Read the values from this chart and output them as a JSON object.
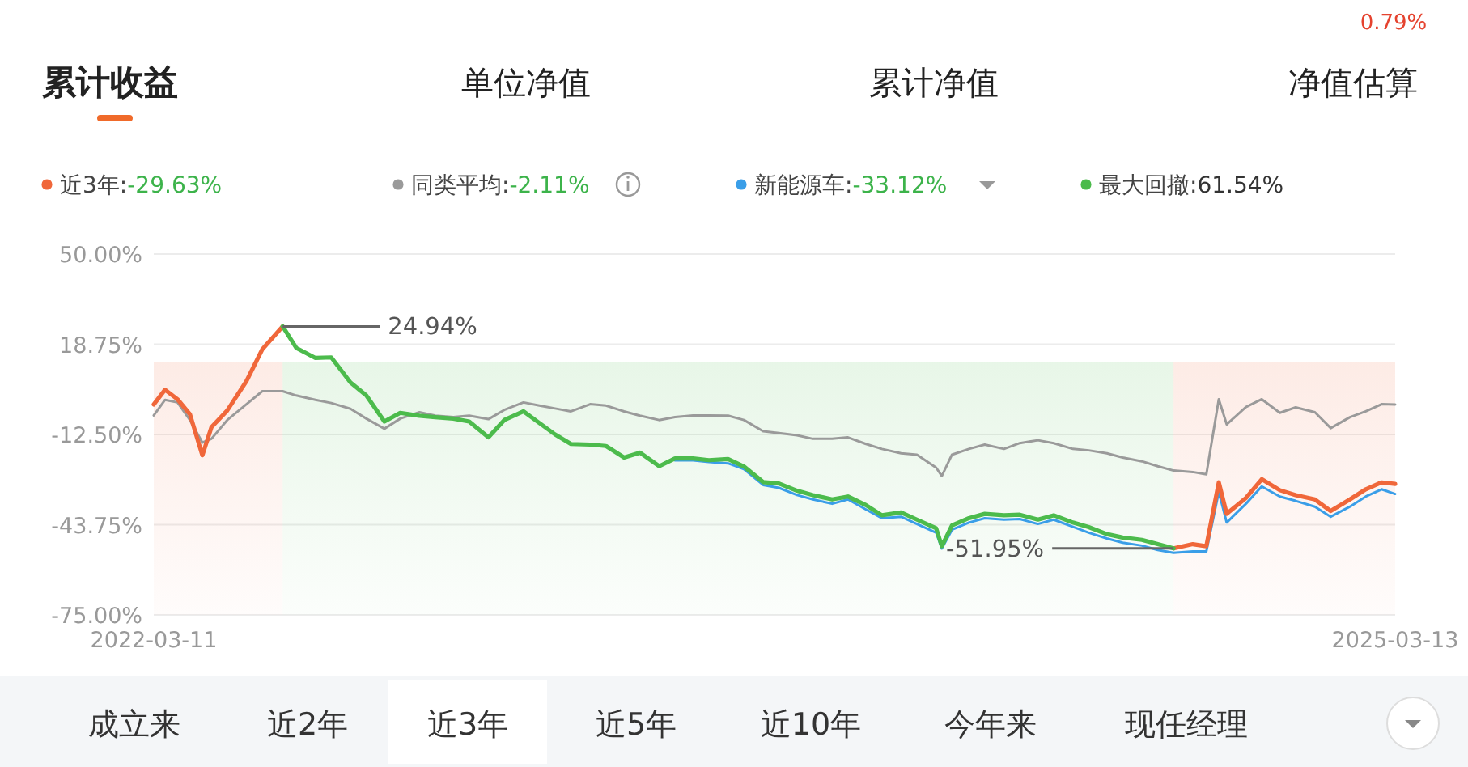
{
  "chart_data": {
    "type": "line",
    "title": "累计收益",
    "x": [
      "2022-03-11",
      "2022-03-21",
      "2022-04-01",
      "2022-04-12",
      "2022-04-23",
      "2022-05-01",
      "2022-05-15",
      "2022-06-01",
      "2022-06-15",
      "2022-07-03",
      "2022-07-15",
      "2022-08-01",
      "2022-08-15",
      "2022-09-01",
      "2022-09-15",
      "2022-10-01",
      "2022-10-15",
      "2022-11-01",
      "2022-11-15",
      "2022-12-01",
      "2022-12-15",
      "2023-01-01",
      "2023-01-15",
      "2023-02-01",
      "2023-02-15",
      "2023-03-01",
      "2023-03-15",
      "2023-04-01",
      "2023-04-15",
      "2023-05-01",
      "2023-05-15",
      "2023-06-01",
      "2023-06-15",
      "2023-07-01",
      "2023-07-15",
      "2023-08-01",
      "2023-08-15",
      "2023-09-01",
      "2023-09-15",
      "2023-10-01",
      "2023-10-15",
      "2023-11-01",
      "2023-11-15",
      "2023-12-01",
      "2023-12-15",
      "2024-01-01",
      "2024-01-15",
      "2024-02-01",
      "2024-02-06",
      "2024-02-15",
      "2024-03-01",
      "2024-03-15",
      "2024-04-01",
      "2024-04-15",
      "2024-05-01",
      "2024-05-15",
      "2024-06-01",
      "2024-06-15",
      "2024-07-01",
      "2024-07-15",
      "2024-08-01",
      "2024-08-15",
      "2024-08-29",
      "2024-09-15",
      "2024-09-27",
      "2024-10-08",
      "2024-10-15",
      "2024-11-01",
      "2024-11-15",
      "2024-12-01",
      "2024-12-15",
      "2025-01-01",
      "2025-01-15",
      "2025-02-01",
      "2025-02-15",
      "2025-03-01",
      "2025-03-13"
    ],
    "series": [
      {
        "name": "近3年:",
        "color": "#f0673a",
        "values": [
          -2.1,
          3.0,
          -0.3,
          -5.5,
          -19.7,
          -10,
          -4.2,
          6,
          17,
          24.94,
          null,
          null,
          null,
          null,
          null,
          null,
          null,
          null,
          null,
          null,
          null,
          null,
          null,
          null,
          null,
          null,
          null,
          null,
          null,
          null,
          null,
          null,
          null,
          null,
          null,
          null,
          null,
          null,
          null,
          null,
          null,
          null,
          null,
          null,
          null,
          null,
          null,
          null,
          null,
          null,
          null,
          null,
          null,
          null,
          null,
          null,
          null,
          null,
          null,
          null,
          null,
          null,
          -51.95,
          -50.5,
          -51.2,
          -29.1,
          -40,
          -34.5,
          -28,
          -31.8,
          -33.5,
          -35,
          -39,
          -35,
          -31.5,
          -29.1,
          -29.63
        ]
      },
      {
        "name": "同类平均:",
        "color": "#9a9a9a",
        "values": [
          -5.9,
          -0.5,
          -1.4,
          -7.5,
          -15.3,
          -14,
          -7.5,
          -2,
          2.5,
          2.5,
          1.0,
          -0.5,
          -1.6,
          -3.6,
          -7,
          -10.5,
          -7,
          -4.8,
          -6,
          -6.5,
          -6,
          -7.2,
          -4,
          -1.4,
          -2.5,
          -3.5,
          -4.5,
          -2,
          -2.5,
          -4.5,
          -6,
          -7.5,
          -6.5,
          -5.9,
          -5.9,
          -6,
          -7.5,
          -11.4,
          -12,
          -12.8,
          -14,
          -14,
          -13.5,
          -15.8,
          -17.5,
          -19,
          -19.5,
          -24,
          -26.9,
          -19.5,
          -17.5,
          -16,
          -17.5,
          -15.5,
          -14.5,
          -15.5,
          -17.5,
          -18,
          -19,
          -20.5,
          -21.8,
          -23.5,
          -25,
          -25.5,
          -26.3,
          -0.3,
          -9,
          -3,
          -0.3,
          -5,
          -3.1,
          -4.8,
          -10.3,
          -6.5,
          -4.5,
          -2,
          -2.11
        ]
      },
      {
        "name": "新能源车:",
        "color": "#3a9ee8",
        "values": [
          null,
          null,
          null,
          null,
          null,
          null,
          null,
          null,
          null,
          null,
          null,
          null,
          null,
          null,
          null,
          null,
          null,
          null,
          null,
          null,
          null,
          null,
          null,
          null,
          null,
          null,
          null,
          null,
          null,
          null,
          null,
          null,
          -21.5,
          -21.5,
          -22,
          -22.5,
          -24.5,
          -30,
          -31,
          -33.5,
          -35,
          -36.5,
          -35,
          -38.5,
          -41.5,
          -41,
          -43.5,
          -46.5,
          -52,
          -45.5,
          -43,
          -41.5,
          -42,
          -41.8,
          -43.5,
          -42,
          -44.5,
          -46.5,
          -48.5,
          -50,
          -51,
          -52.5,
          -53.5,
          -53,
          -53,
          -32.4,
          -43,
          -36.5,
          -30.5,
          -34,
          -35.5,
          -37.5,
          -41,
          -37.5,
          -34,
          -31.5,
          -33.12
        ]
      },
      {
        "name": "最大回撤:",
        "color": "#4cbb4c",
        "values": [
          null,
          null,
          null,
          null,
          null,
          null,
          null,
          null,
          null,
          24.94,
          17.5,
          14,
          14.2,
          5.5,
          1,
          -8,
          -5,
          -6,
          -6.5,
          -7,
          -8,
          -13.5,
          -7.5,
          -4.5,
          -8.5,
          -12.5,
          -15.8,
          -16,
          -16.5,
          -20.5,
          -18.8,
          -23.5,
          -20.8,
          -20.8,
          -21.4,
          -21,
          -23.6,
          -29,
          -29.5,
          -32,
          -33.5,
          -35,
          -34,
          -37,
          -40.5,
          -39.5,
          -42,
          -45,
          -51.2,
          -44,
          -41.5,
          -40,
          -40.5,
          -40.3,
          -42,
          -40.5,
          -43,
          -44.6,
          -47,
          -48.2,
          -49,
          -50.5,
          -51.95,
          null,
          null,
          null,
          null,
          null,
          null,
          null,
          null,
          null,
          null,
          null,
          null,
          null,
          null
        ]
      }
    ],
    "xlim": [
      "2022-03-11",
      "2025-03-13"
    ],
    "xticks": [
      {
        "value": "2022-03-11",
        "label": "2022-03-11"
      },
      {
        "value": "2025-03-13",
        "label": "2025-03-13"
      }
    ],
    "ylim": [
      -75,
      50
    ],
    "yticks": [
      {
        "value": -75,
        "label": "-75.00%"
      },
      {
        "value": -43.75,
        "label": "-43.75%"
      },
      {
        "value": -12.5,
        "label": "-12.50%"
      },
      {
        "value": 18.75,
        "label": "18.75%"
      },
      {
        "value": 50,
        "label": "50.00%"
      }
    ],
    "bands": [
      {
        "axis": "x",
        "from": "2022-03-11",
        "to": "2022-07-03",
        "color": "#f0673a"
      },
      {
        "axis": "x",
        "from": "2022-07-03",
        "to": "2024-08-29",
        "color": "#4cbb4c"
      },
      {
        "axis": "x",
        "from": "2024-08-29",
        "to": "2025-03-13",
        "color": "#f0673a"
      }
    ],
    "grid": "y",
    "legend": "top",
    "annotations": [
      "单位净值",
      "累计净值",
      "净值估算",
      "0.79%",
      "-29.63%",
      "-2.11%",
      "-33.12%",
      "61.54%",
      {
        "text": "24.94%",
        "x": "2022-07-03",
        "y": 24.94
      },
      {
        "text": "-51.95%",
        "x": "2024-08-29",
        "y": -51.95
      },
      "成立来",
      "近2年",
      "近3年",
      "近5年",
      "近10年",
      "今年来",
      "现任经理"
    ]
  }
}
